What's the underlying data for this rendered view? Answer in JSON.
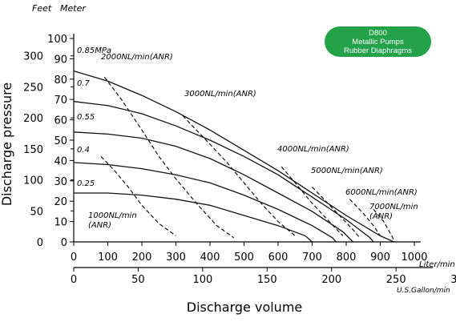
{
  "badge": {
    "lines": [
      "D800",
      "Metallic Pumps",
      "Rubber Diaphragms"
    ],
    "color": "#23a24a"
  },
  "chart_data": {
    "type": "line",
    "title": "",
    "xlabel": "Discharge volume",
    "ylabel": "Discharge pressure",
    "units": {
      "feet": "Feet",
      "meter": "Meter",
      "liter": "Liter/min",
      "gallon": "U.S.Gallon/min"
    },
    "x_liter_ticks": [
      0,
      100,
      200,
      300,
      400,
      500,
      600,
      700,
      800,
      900,
      1000
    ],
    "x_gallon_ticks": [
      0,
      50,
      100,
      150,
      200,
      250,
      300
    ],
    "y_meter_ticks": [
      0,
      10,
      20,
      30,
      40,
      50,
      60,
      70,
      80,
      90,
      100
    ],
    "y_feet_ticks": [
      0,
      50,
      100,
      150,
      200,
      250,
      300
    ],
    "xlim": [
      0,
      1000
    ],
    "ylim": [
      0,
      100
    ],
    "grid": false,
    "pressure_series": [
      {
        "name": "0.85MPa",
        "label": "0.85MPa",
        "points": [
          [
            0,
            84
          ],
          [
            100,
            79
          ],
          [
            200,
            72
          ],
          [
            300,
            64
          ],
          [
            400,
            55
          ],
          [
            500,
            45
          ],
          [
            600,
            35
          ],
          [
            700,
            24
          ],
          [
            800,
            13
          ],
          [
            900,
            3
          ],
          [
            940,
            0
          ]
        ]
      },
      {
        "name": "0.7",
        "label": "0.7",
        "points": [
          [
            0,
            69
          ],
          [
            100,
            67
          ],
          [
            200,
            63
          ],
          [
            300,
            57
          ],
          [
            400,
            50
          ],
          [
            500,
            42
          ],
          [
            600,
            33
          ],
          [
            700,
            22
          ],
          [
            800,
            11
          ],
          [
            870,
            2
          ],
          [
            880,
            0
          ]
        ]
      },
      {
        "name": "0.55",
        "label": "0.55",
        "points": [
          [
            0,
            54
          ],
          [
            100,
            53
          ],
          [
            200,
            51
          ],
          [
            300,
            47
          ],
          [
            400,
            41
          ],
          [
            500,
            33
          ],
          [
            600,
            24
          ],
          [
            700,
            15
          ],
          [
            790,
            5
          ],
          [
            820,
            0
          ]
        ]
      },
      {
        "name": "0.4",
        "label": "0.4",
        "points": [
          [
            0,
            39
          ],
          [
            100,
            38
          ],
          [
            200,
            36
          ],
          [
            300,
            33
          ],
          [
            400,
            29
          ],
          [
            500,
            23
          ],
          [
            600,
            16
          ],
          [
            700,
            8
          ],
          [
            760,
            2
          ],
          [
            770,
            0
          ]
        ]
      },
      {
        "name": "0.25",
        "label": "0.25",
        "points": [
          [
            0,
            24
          ],
          [
            100,
            24
          ],
          [
            200,
            23
          ],
          [
            300,
            21
          ],
          [
            400,
            18
          ],
          [
            500,
            13
          ],
          [
            600,
            8
          ],
          [
            680,
            3
          ],
          [
            700,
            0
          ]
        ]
      }
    ],
    "air_series": [
      {
        "name": "1000NL/min(ANR)",
        "label_lines": [
          "1000NL/min",
          "(ANR)"
        ],
        "points": [
          [
            80,
            42
          ],
          [
            120,
            35
          ],
          [
            160,
            27
          ],
          [
            200,
            18
          ],
          [
            250,
            9
          ],
          [
            300,
            3
          ]
        ]
      },
      {
        "name": "2000NL/min(ANR)",
        "label_lines": [
          "2000NL/min(ANR)"
        ],
        "points": [
          [
            90,
            81
          ],
          [
            140,
            70
          ],
          [
            200,
            55
          ],
          [
            250,
            42
          ],
          [
            300,
            31
          ],
          [
            360,
            19
          ],
          [
            420,
            8
          ],
          [
            470,
            2
          ]
        ]
      },
      {
        "name": "3000NL/min(ANR)",
        "label_lines": [
          "3000NL/min(ANR)"
        ],
        "points": [
          [
            320,
            62
          ],
          [
            360,
            55
          ],
          [
            400,
            48
          ],
          [
            450,
            39
          ],
          [
            500,
            29
          ],
          [
            550,
            19
          ],
          [
            600,
            10
          ],
          [
            650,
            3
          ]
        ]
      },
      {
        "name": "4000NL/min(ANR)",
        "label_lines": [
          "4000NL/min(ANR)"
        ],
        "points": [
          [
            610,
            37
          ],
          [
            650,
            29
          ],
          [
            700,
            19
          ],
          [
            750,
            10
          ],
          [
            790,
            3
          ]
        ]
      },
      {
        "name": "5000NL/min(ANR)",
        "label_lines": [
          "5000NL/min(ANR)"
        ],
        "points": [
          [
            700,
            27
          ],
          [
            740,
            20
          ],
          [
            780,
            13
          ],
          [
            820,
            6
          ],
          [
            840,
            2
          ]
        ]
      },
      {
        "name": "6000NL/min(ANR)",
        "label_lines": [
          "6000NL/min(ANR)"
        ],
        "points": [
          [
            810,
            21
          ],
          [
            850,
            14
          ],
          [
            880,
            8
          ],
          [
            900,
            3
          ]
        ]
      },
      {
        "name": "7000NL/min(ANR)",
        "label_lines": [
          "7000NL/min",
          "(ANR)"
        ],
        "points": [
          [
            880,
            16
          ],
          [
            910,
            10
          ],
          [
            930,
            4
          ],
          [
            940,
            1
          ]
        ]
      }
    ]
  }
}
